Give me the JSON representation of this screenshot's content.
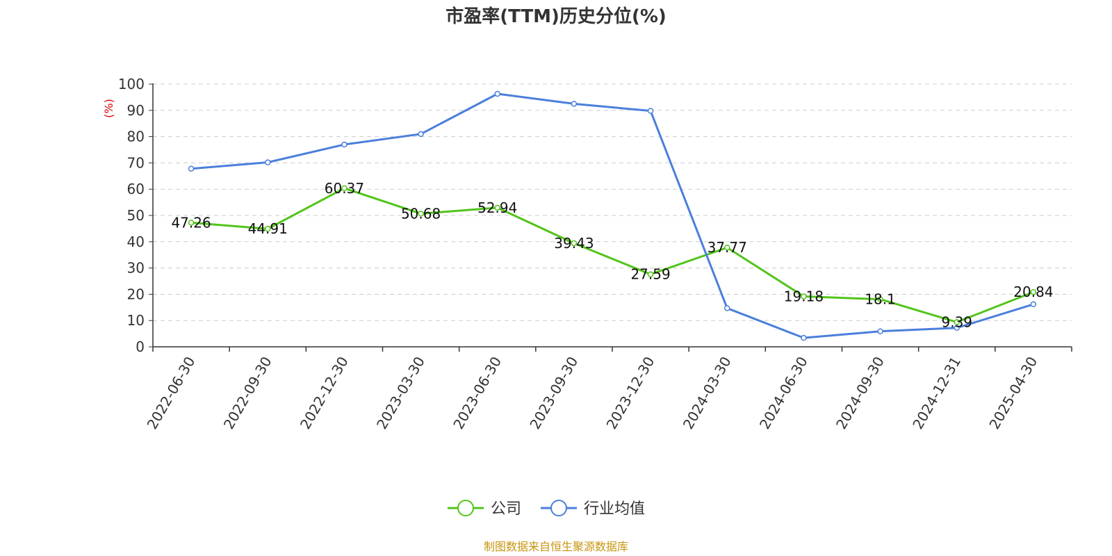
{
  "colors": {
    "company": "#52c41a",
    "industry": "#4a7fdc",
    "unit": "#e00000",
    "source": "#c7950f",
    "grid": "#cccccc",
    "axis": "#333333"
  },
  "chart_data": {
    "type": "line",
    "title": "市盈率(TTM)历史分位(%)",
    "unit_label": "(%)",
    "xlabel": "",
    "ylabel": "",
    "ylim": [
      0,
      100
    ],
    "yticks": [
      0,
      10,
      20,
      30,
      40,
      50,
      60,
      70,
      80,
      90,
      100
    ],
    "grid": "horizontal-dashed",
    "legend_position": "bottom-center",
    "categories": [
      "2022-06-30",
      "2022-09-30",
      "2022-12-30",
      "2023-03-30",
      "2023-06-30",
      "2023-09-30",
      "2023-12-30",
      "2024-03-30",
      "2024-06-30",
      "2024-09-30",
      "2024-12-31",
      "2025-04-30"
    ],
    "series": [
      {
        "name": "公司",
        "color_key": "company",
        "show_labels": true,
        "values": [
          47.26,
          44.91,
          60.37,
          50.68,
          52.94,
          39.43,
          27.59,
          37.77,
          19.18,
          18.1,
          9.39,
          20.84
        ],
        "labels": [
          "47.26",
          "44.91",
          "60.37",
          "50.68",
          "52.94",
          "39.43",
          "27.59",
          "37.77",
          "19.18",
          "18.1",
          "9.39",
          "20.84"
        ]
      },
      {
        "name": "行业均值",
        "color_key": "industry",
        "show_labels": false,
        "values": [
          67.8,
          70.2,
          77.0,
          81.0,
          96.3,
          92.5,
          89.8,
          14.7,
          3.4,
          5.9,
          7.2,
          16.2
        ]
      }
    ]
  },
  "source_text": "制图数据来自恒生聚源数据库"
}
